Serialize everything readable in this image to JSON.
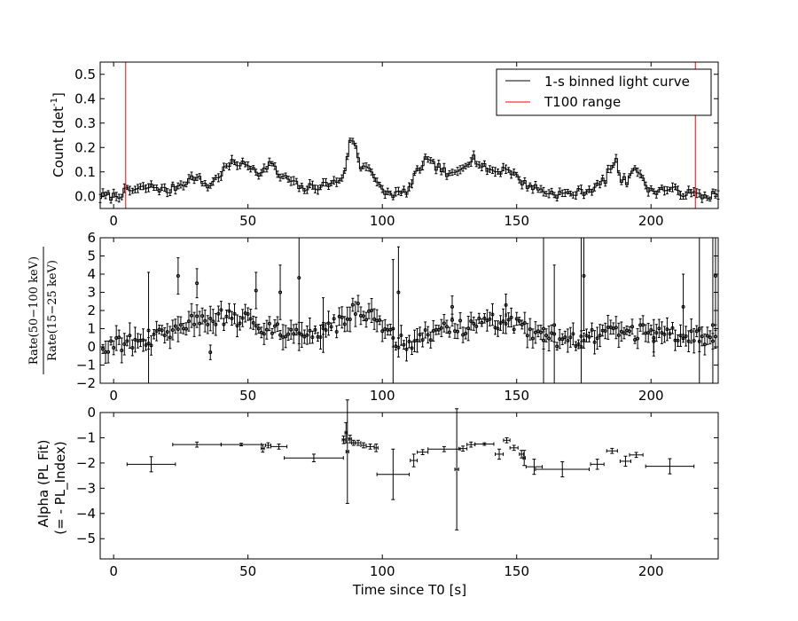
{
  "chart_data": [
    {
      "type": "line",
      "panel": "top",
      "ylabel_main": "Count [det",
      "ylabel_sup": "-1",
      "ylabel_end": "]",
      "xlim": [
        -5,
        225
      ],
      "ylim": [
        -0.05,
        0.55
      ],
      "xticks": [
        0,
        50,
        100,
        150,
        200
      ],
      "xtick_labels": [
        "0",
        "50",
        "100",
        "150",
        "200"
      ],
      "yticks": [
        0.0,
        0.1,
        0.2,
        0.3,
        0.4,
        0.5
      ],
      "ytick_labels": [
        "0.0",
        "0.1",
        "0.2",
        "0.3",
        "0.4",
        "0.5"
      ],
      "legend": {
        "placement": "top-right",
        "entries": [
          {
            "label": "1-s binned light curve",
            "color": "#000000"
          },
          {
            "label": "T100 range",
            "color": "#ff0000"
          }
        ]
      },
      "t100_range": [
        4.5,
        216.5
      ],
      "anchors": {
        "x": [
          -5,
          0,
          5,
          10,
          15,
          20,
          25,
          30,
          33,
          35,
          38,
          42,
          45,
          48,
          52,
          55,
          58,
          62,
          65,
          70,
          75,
          80,
          83,
          85,
          87,
          88,
          90,
          92,
          95,
          98,
          100,
          103,
          107,
          110,
          113,
          116,
          118,
          121,
          125,
          128,
          131,
          134,
          137,
          140,
          143,
          146,
          148,
          150,
          153,
          156,
          160,
          165,
          170,
          175,
          180,
          183,
          185,
          187,
          189,
          191,
          193,
          195,
          197,
          200,
          205,
          210,
          215,
          220,
          225
        ],
        "y": [
          0.0,
          0.0,
          0.02,
          0.03,
          0.04,
          0.02,
          0.05,
          0.08,
          0.06,
          0.04,
          0.07,
          0.12,
          0.14,
          0.13,
          0.12,
          0.09,
          0.14,
          0.08,
          0.07,
          0.03,
          0.04,
          0.05,
          0.06,
          0.08,
          0.15,
          0.24,
          0.2,
          0.12,
          0.13,
          0.05,
          0.02,
          0.01,
          0.01,
          0.03,
          0.1,
          0.15,
          0.13,
          0.12,
          0.08,
          0.1,
          0.14,
          0.16,
          0.12,
          0.11,
          0.1,
          0.12,
          0.1,
          0.08,
          0.05,
          0.04,
          0.02,
          0.01,
          0.01,
          0.02,
          0.04,
          0.07,
          0.12,
          0.14,
          0.07,
          0.06,
          0.12,
          0.11,
          0.06,
          0.02,
          0.03,
          0.02,
          0.01,
          0.0,
          0.01
        ]
      }
    },
    {
      "type": "scatter",
      "panel": "middle",
      "ylabel_numerator": "Rate(50−100 keV)",
      "ylabel_denominator": "Rate(15−25 keV)",
      "xlim": [
        -5,
        225
      ],
      "ylim": [
        -2,
        6
      ],
      "xticks": [
        0,
        50,
        100,
        150,
        200
      ],
      "xtick_labels": [
        "0",
        "50",
        "100",
        "150",
        "200"
      ],
      "yticks": [
        -2,
        -1,
        0,
        1,
        2,
        3,
        4,
        5,
        6
      ],
      "ytick_labels": [
        "−2",
        "−1",
        "0",
        "1",
        "2",
        "3",
        "4",
        "5",
        "6"
      ],
      "anchors": {
        "x": [
          -5,
          5,
          15,
          20,
          25,
          30,
          40,
          50,
          60,
          70,
          80,
          85,
          90,
          95,
          100,
          105,
          110,
          115,
          120,
          125,
          130,
          135,
          140,
          145,
          150,
          155,
          160,
          170,
          180,
          190,
          200,
          210,
          220,
          225
        ],
        "y": [
          0.1,
          0.2,
          0.4,
          0.8,
          1.2,
          1.5,
          1.6,
          1.4,
          1.0,
          0.8,
          0.9,
          1.4,
          2.0,
          1.7,
          1.0,
          0.3,
          0.2,
          0.5,
          0.9,
          1.2,
          1.0,
          1.2,
          1.3,
          1.5,
          1.2,
          0.7,
          0.4,
          0.3,
          0.6,
          0.9,
          0.7,
          0.6,
          0.5,
          0.6
        ]
      },
      "outliers": [
        {
          "x": 13,
          "y": 0.9,
          "err": 3.2
        },
        {
          "x": 24,
          "y": 3.9,
          "err": 1.0
        },
        {
          "x": 31,
          "y": 3.5,
          "err": 0.8
        },
        {
          "x": 36,
          "y": -0.3,
          "err": 0.4
        },
        {
          "x": 53,
          "y": 3.1,
          "err": 1.0
        },
        {
          "x": 62,
          "y": 3.0,
          "err": 1.5
        },
        {
          "x": 69,
          "y": 3.8,
          "err": 4.0
        },
        {
          "x": 78,
          "y": 1.2,
          "err": 1.5
        },
        {
          "x": 104,
          "y": 1.0,
          "err": 3.8
        },
        {
          "x": 106,
          "y": 3.0,
          "err": 2.5
        },
        {
          "x": 126,
          "y": 2.2,
          "err": 0.6
        },
        {
          "x": 146,
          "y": 2.3,
          "err": 0.6
        },
        {
          "x": 160,
          "y": 1.0,
          "err": 6.0
        },
        {
          "x": 164,
          "y": 1.2,
          "err": 3.3
        },
        {
          "x": 174,
          "y": 0.0,
          "err": 6.0
        },
        {
          "x": 175,
          "y": 3.9,
          "err": 3.0
        },
        {
          "x": 201,
          "y": 0.5,
          "err": 1.0
        },
        {
          "x": 212,
          "y": 2.2,
          "err": 1.8
        },
        {
          "x": 218,
          "y": 1.0,
          "err": 5.0
        },
        {
          "x": 223,
          "y": 1.2,
          "err": 5.0
        },
        {
          "x": 224,
          "y": 3.9,
          "err": 3.0
        }
      ]
    },
    {
      "type": "scatter",
      "panel": "bottom",
      "ylabel_line1": "Alpha (PL Fit)",
      "ylabel_line2": "(= - PL_Index)",
      "xlabel": "Time since T0 [s]",
      "xlim": [
        -5,
        225
      ],
      "ylim": [
        -5.8,
        0
      ],
      "xticks": [
        0,
        50,
        100,
        150,
        200
      ],
      "xtick_labels": [
        "0",
        "50",
        "100",
        "150",
        "200"
      ],
      "yticks": [
        0,
        -1,
        -2,
        -3,
        -4,
        -5
      ],
      "ytick_labels": [
        "0",
        "−1",
        "−2",
        "−3",
        "−4",
        "−5"
      ],
      "points": [
        {
          "x": 14,
          "xerr": 9,
          "y": -2.05,
          "yerr": 0.3
        },
        {
          "x": 31,
          "xerr": 9,
          "y": -1.27,
          "yerr": 0.1
        },
        {
          "x": 47.5,
          "xerr": 7.5,
          "y": -1.27,
          "yerr": 0.05
        },
        {
          "x": 55.5,
          "xerr": 0.6,
          "y": -1.42,
          "yerr": 0.15
        },
        {
          "x": 57.5,
          "xerr": 1.0,
          "y": -1.3,
          "yerr": 0.1
        },
        {
          "x": 61.5,
          "xerr": 3.0,
          "y": -1.35,
          "yerr": 0.1
        },
        {
          "x": 74.5,
          "xerr": 11,
          "y": -1.8,
          "yerr": 0.15
        },
        {
          "x": 85.6,
          "xerr": 0.5,
          "y": -1.08,
          "yerr": 0.15
        },
        {
          "x": 86.5,
          "xerr": 0.4,
          "y": -0.8,
          "yerr": 0.4
        },
        {
          "x": 87.0,
          "xerr": 0.5,
          "y": -1.55,
          "yerr": 2.05
        },
        {
          "x": 88.0,
          "xerr": 0.5,
          "y": -1.05,
          "yerr": 0.15
        },
        {
          "x": 89.3,
          "xerr": 0.7,
          "y": -1.2,
          "yerr": 0.1
        },
        {
          "x": 91.0,
          "xerr": 1.0,
          "y": -1.2,
          "yerr": 0.1
        },
        {
          "x": 93.0,
          "xerr": 1.0,
          "y": -1.3,
          "yerr": 0.1
        },
        {
          "x": 95.5,
          "xerr": 1.5,
          "y": -1.35,
          "yerr": 0.1
        },
        {
          "x": 97.7,
          "xerr": 0.7,
          "y": -1.4,
          "yerr": 0.15
        },
        {
          "x": 104,
          "xerr": 6,
          "y": -2.45,
          "yerr": 1.0
        },
        {
          "x": 111.7,
          "xerr": 1.3,
          "y": -1.9,
          "yerr": 0.25
        },
        {
          "x": 115,
          "xerr": 2,
          "y": -1.57,
          "yerr": 0.1
        },
        {
          "x": 123,
          "xerr": 6,
          "y": -1.45,
          "yerr": 0.1
        },
        {
          "x": 127.7,
          "xerr": 0.7,
          "y": -2.25,
          "yerr": 2.4
        },
        {
          "x": 130,
          "xerr": 1.5,
          "y": -1.43,
          "yerr": 0.1
        },
        {
          "x": 133,
          "xerr": 1.5,
          "y": -1.27,
          "yerr": 0.1
        },
        {
          "x": 138,
          "xerr": 3.5,
          "y": -1.25,
          "yerr": 0.05
        },
        {
          "x": 143.5,
          "xerr": 1.5,
          "y": -1.65,
          "yerr": 0.2
        },
        {
          "x": 146.3,
          "xerr": 1.2,
          "y": -1.1,
          "yerr": 0.1
        },
        {
          "x": 149,
          "xerr": 1.5,
          "y": -1.4,
          "yerr": 0.1
        },
        {
          "x": 151.8,
          "xerr": 0.8,
          "y": -1.65,
          "yerr": 0.15
        },
        {
          "x": 152.8,
          "xerr": 0.4,
          "y": -1.8,
          "yerr": 0.3
        },
        {
          "x": 156.5,
          "xerr": 3,
          "y": -2.15,
          "yerr": 0.3
        },
        {
          "x": 167,
          "xerr": 10,
          "y": -2.25,
          "yerr": 0.3
        },
        {
          "x": 180,
          "xerr": 2.5,
          "y": -2.05,
          "yerr": 0.2
        },
        {
          "x": 185.5,
          "xerr": 2,
          "y": -1.52,
          "yerr": 0.1
        },
        {
          "x": 190.5,
          "xerr": 2,
          "y": -1.93,
          "yerr": 0.2
        },
        {
          "x": 194.5,
          "xerr": 2.5,
          "y": -1.68,
          "yerr": 0.1
        },
        {
          "x": 207,
          "xerr": 9,
          "y": -2.13,
          "yerr": 0.3
        }
      ]
    }
  ]
}
